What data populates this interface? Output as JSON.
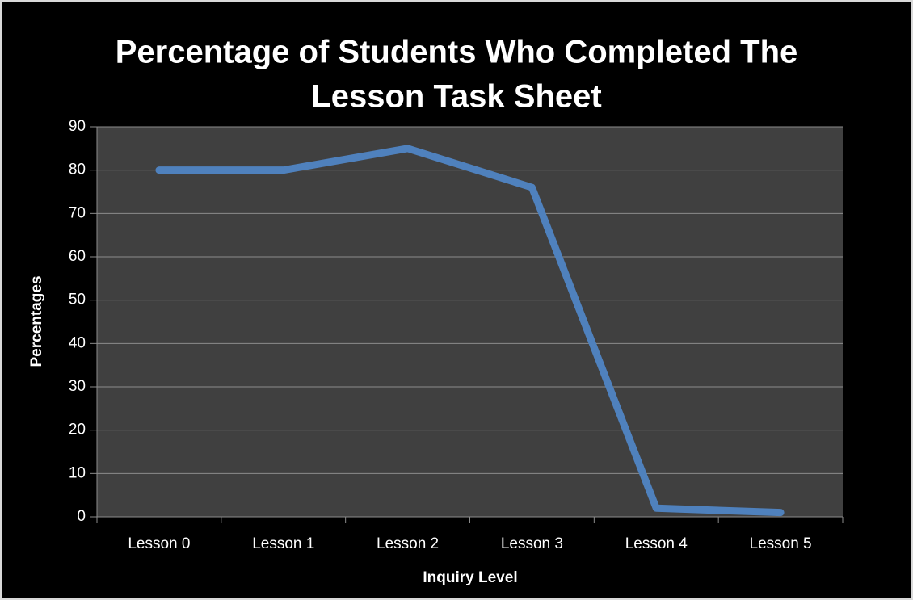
{
  "chart_data": {
    "type": "line",
    "title": [
      "Percentage of Students Who Completed The",
      "Lesson Task Sheet"
    ],
    "x_label": "Inquiry Level",
    "y_label": "Percentages",
    "categories": [
      "Lesson 0",
      "Lesson 1",
      "Lesson 2",
      "Lesson 3",
      "Lesson 4",
      "Lesson 5"
    ],
    "series": [
      {
        "name": "Percentages",
        "color": "#4f81bd",
        "values": [
          80,
          80,
          85,
          76,
          2,
          1
        ]
      }
    ],
    "ylim": [
      0,
      90
    ],
    "yticks": [
      0,
      10,
      20,
      30,
      40,
      50,
      60,
      70,
      80,
      90
    ],
    "grid": true
  }
}
